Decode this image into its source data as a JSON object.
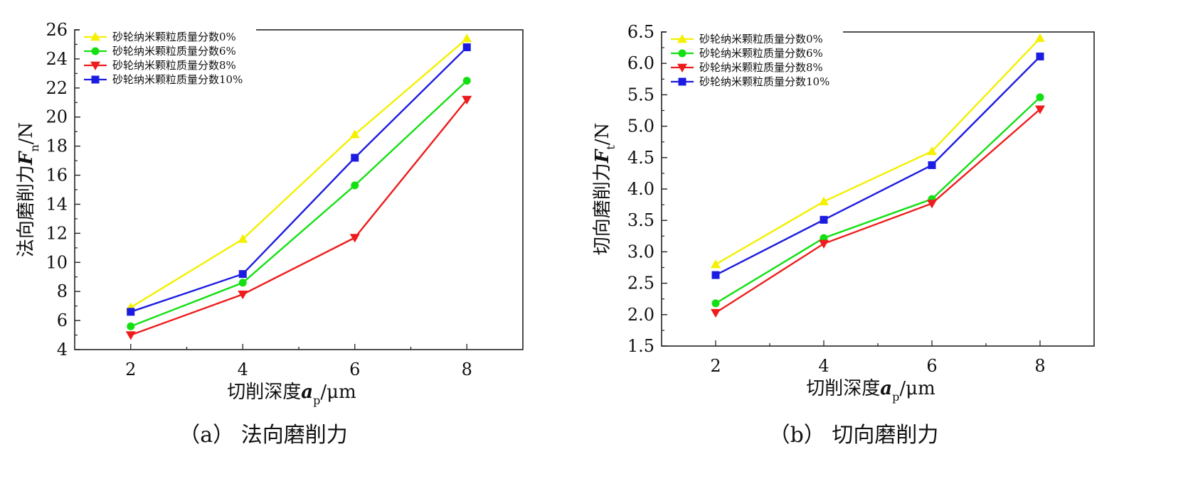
{
  "chart_data": [
    {
      "type": "line",
      "caption": "（a）  法向磨削力",
      "xlabel_main": "切削深度",
      "xlabel_var": "a",
      "xlabel_sub": "p",
      "xlabel_unit": "/μm",
      "ylabel_main": "法向磨削力",
      "ylabel_var": "F",
      "ylabel_sub": "n",
      "ylabel_unit": "/N",
      "x": [
        2,
        4,
        6,
        8
      ],
      "xlim": [
        1,
        9
      ],
      "ylim": [
        4,
        26
      ],
      "xticks": [
        2,
        4,
        6,
        8
      ],
      "yticks": [
        4,
        6,
        8,
        10,
        12,
        14,
        16,
        18,
        20,
        22,
        24,
        26
      ],
      "legend_position": "top-left",
      "series": [
        {
          "name": "砂轮纳米颗粒质量分数0%",
          "color": "#f4f000",
          "marker": "triangle-up",
          "values": [
            6.9,
            11.6,
            18.8,
            25.4
          ]
        },
        {
          "name": "砂轮纳米颗粒质量分数6%",
          "color": "#12e012",
          "marker": "circle",
          "values": [
            5.6,
            8.6,
            15.3,
            22.5
          ]
        },
        {
          "name": "砂轮纳米颗粒质量分数8%",
          "color": "#ee1c1c",
          "marker": "triangle-down",
          "values": [
            5.0,
            7.8,
            11.7,
            21.2
          ]
        },
        {
          "name": "砂轮纳米颗粒质量分数10%",
          "color": "#1c1ce0",
          "marker": "square",
          "values": [
            6.6,
            9.2,
            17.2,
            24.8
          ]
        }
      ]
    },
    {
      "type": "line",
      "caption": "（b）  切向磨削力",
      "xlabel_main": "切削深度",
      "xlabel_var": "a",
      "xlabel_sub": "p",
      "xlabel_unit": "/μm",
      "ylabel_main": "切向磨削力",
      "ylabel_var": "F",
      "ylabel_sub": "t",
      "ylabel_unit": "/N",
      "x": [
        2,
        4,
        6,
        8
      ],
      "xlim": [
        1,
        9
      ],
      "ylim": [
        1.5,
        6.5
      ],
      "xticks": [
        2,
        4,
        6,
        8
      ],
      "yticks": [
        1.5,
        2.0,
        2.5,
        3.0,
        3.5,
        4.0,
        4.5,
        5.0,
        5.5,
        6.0,
        6.5
      ],
      "legend_position": "top-left",
      "series": [
        {
          "name": "砂轮纳米颗粒质量分数0%",
          "color": "#f4f000",
          "marker": "triangle-up",
          "values": [
            2.8,
            3.8,
            4.6,
            6.4
          ]
        },
        {
          "name": "砂轮纳米颗粒质量分数6%",
          "color": "#12e012",
          "marker": "circle",
          "values": [
            2.18,
            3.22,
            3.84,
            5.46
          ]
        },
        {
          "name": "砂轮纳米颗粒质量分数8%",
          "color": "#ee1c1c",
          "marker": "triangle-down",
          "values": [
            2.03,
            3.13,
            3.77,
            5.27
          ]
        },
        {
          "name": "砂轮纳米颗粒质量分数10%",
          "color": "#1c1ce0",
          "marker": "square",
          "values": [
            2.63,
            3.51,
            4.38,
            6.11
          ]
        }
      ]
    }
  ]
}
